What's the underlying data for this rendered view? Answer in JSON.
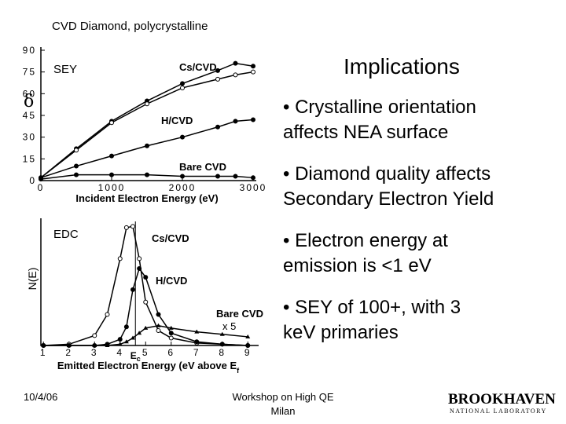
{
  "slide": {
    "title": "CVD Diamond, polycrystalline",
    "heading": "Implications",
    "bullets": [
      [
        "• Crystalline orientation",
        "affects NEA surface"
      ],
      [
        "• Diamond quality affects",
        "Secondary Electron Yield"
      ],
      [
        "• Electron energy at",
        "emission is <1 eV"
      ],
      [
        "• SEY of 100+, with 3",
        "keV primaries"
      ]
    ],
    "footer": {
      "date": "10/4/06",
      "center": [
        "Workshop on High QE",
        "Milan"
      ],
      "logo": [
        "BROOKHAVEN",
        "NATIONAL LABORATORY"
      ]
    }
  },
  "chart_data": [
    {
      "type": "line",
      "panel_label": "SEY",
      "xlabel": "Incident Electron Energy (eV)",
      "ylabel": "δ",
      "x": [
        0,
        500,
        1000,
        1500,
        2000,
        2500,
        2750,
        3000
      ],
      "xlim": [
        0,
        3000
      ],
      "xticks": [
        0,
        1000,
        2000,
        3000
      ],
      "ylim": [
        0,
        90
      ],
      "yticks": [
        0,
        15,
        30,
        45,
        60,
        75,
        90
      ],
      "series": [
        {
          "name": "Cs/CVD",
          "color": "#000000",
          "marker": "filled",
          "values": [
            2,
            22,
            41,
            55,
            67,
            76,
            81,
            79
          ]
        },
        {
          "color": "#000000",
          "marker": "open",
          "values": [
            2,
            21,
            40,
            53,
            64,
            70,
            73,
            75
          ]
        },
        {
          "name": "H/CVD",
          "color": "#000000",
          "marker": "filled",
          "values": [
            2,
            10,
            17,
            24,
            30,
            37,
            41,
            42
          ]
        },
        {
          "name": "Bare CVD",
          "color": "#000000",
          "marker": "filled",
          "values": [
            1,
            4,
            4,
            4,
            3,
            3,
            3,
            2
          ]
        }
      ]
    },
    {
      "type": "line",
      "panel_label": "EDC",
      "xlabel": "Emitted Electron Energy (eV above E",
      "xlabel_subscript": "f",
      "ylabel": "N(E)",
      "annotation": "x 5",
      "ec_line": {
        "value": 4.6,
        "label": "E",
        "label_subscript": "c"
      },
      "x": [
        1,
        2,
        3,
        3.5,
        4,
        4.25,
        4.5,
        4.75,
        5,
        5.5,
        6,
        7,
        8,
        9
      ],
      "xlim": [
        0.9,
        9.3
      ],
      "xticks": [
        1,
        2,
        3,
        4,
        5,
        6,
        7,
        8,
        9
      ],
      "ylim": [
        0,
        100
      ],
      "series": [
        {
          "name": "Cs/CVD",
          "color": "#000000",
          "marker": "open",
          "values": [
            0,
            1,
            8,
            25,
            70,
            95,
            96,
            70,
            35,
            12,
            6,
            2,
            1,
            0
          ]
        },
        {
          "name": "H/CVD",
          "color": "#000000",
          "marker": "filled",
          "values": [
            0,
            0,
            0,
            1,
            5,
            15,
            45,
            62,
            55,
            25,
            10,
            3,
            1,
            0
          ]
        },
        {
          "name": "Bare CVD",
          "color": "#000000",
          "marker": "triangle",
          "values": [
            0,
            0,
            0,
            0,
            1,
            3,
            6,
            10,
            14,
            16,
            14,
            11,
            9,
            7
          ]
        }
      ]
    }
  ]
}
